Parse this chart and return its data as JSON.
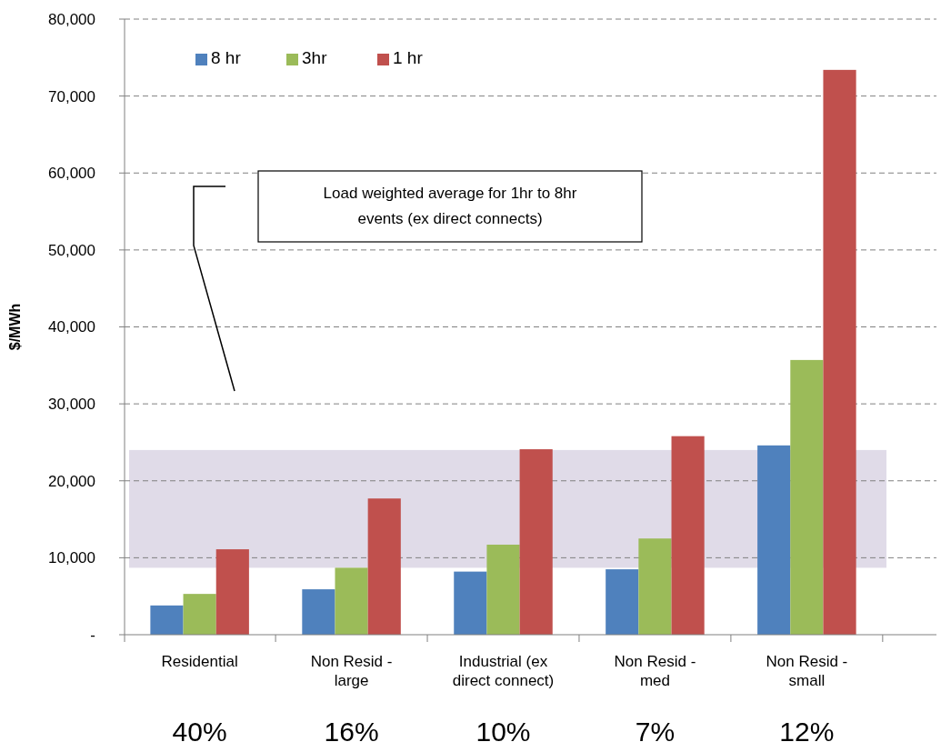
{
  "chart_data": {
    "type": "bar",
    "ylabel": "$/MWh",
    "categories": [
      "Residential",
      "Non Resid - large",
      "Industrial (ex direct connect)",
      "Non Resid - med",
      "Non Resid - small"
    ],
    "series": [
      {
        "name": "8 hr",
        "color": "#4f81bd",
        "values": [
          3800,
          5900,
          8200,
          8500,
          24600
        ]
      },
      {
        "name": "3hr",
        "color": "#9bbb59",
        "values": [
          5300,
          8700,
          11700,
          12500,
          35700
        ]
      },
      {
        "name": "1 hr",
        "color": "#c0504d",
        "values": [
          11100,
          17700,
          24100,
          25800,
          73400
        ]
      }
    ],
    "ylim": [
      0,
      80000
    ],
    "yticks": [
      {
        "value": 0,
        "label": "-"
      },
      {
        "value": 10000,
        "label": "10,000"
      },
      {
        "value": 20000,
        "label": "20,000"
      },
      {
        "value": 30000,
        "label": "30,000"
      },
      {
        "value": 40000,
        "label": "40,000"
      },
      {
        "value": 50000,
        "label": "50,000"
      },
      {
        "value": 60000,
        "label": "60,000"
      },
      {
        "value": 70000,
        "label": "70,000"
      },
      {
        "value": 80000,
        "label": "80,000"
      }
    ],
    "grid": "y",
    "legend": "top left",
    "bands": [
      {
        "axis": "y",
        "from": 8700,
        "to": 24000,
        "color": "#e0dbe8"
      }
    ],
    "annotations": [
      "Load weighted average for 1hr to 8hr events (ex direct connects)",
      "40%",
      "16%",
      "10%",
      "7%",
      "12%"
    ]
  }
}
